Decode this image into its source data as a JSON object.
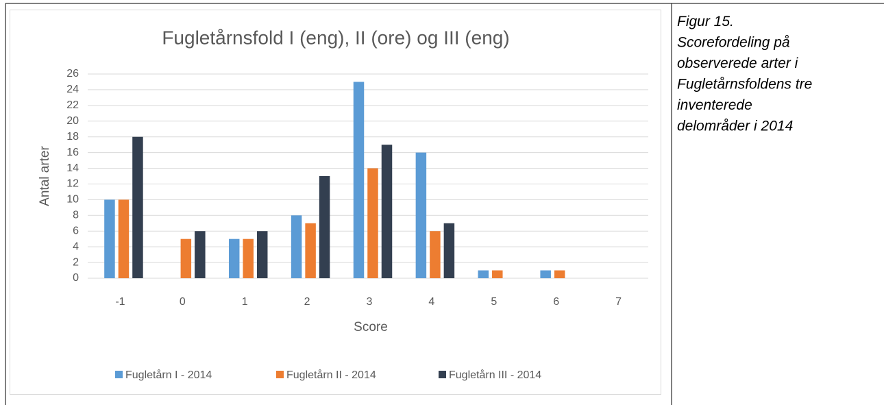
{
  "chart_data": {
    "type": "bar",
    "title": "Fugletårnsfold I (eng), II (ore) og III (eng)",
    "x_label": "Score",
    "y_label": "Antal arter",
    "categories": [
      "-1",
      "0",
      "1",
      "2",
      "3",
      "4",
      "5",
      "6",
      "7"
    ],
    "series": [
      {
        "name": "Fugletårn I - 2014",
        "color": "#5b9bd5",
        "values": [
          10,
          null,
          5,
          8,
          25,
          16,
          1,
          1,
          null
        ]
      },
      {
        "name": "Fugletårn II - 2014",
        "color": "#ed7d31",
        "values": [
          10,
          5,
          5,
          7,
          14,
          6,
          1,
          1,
          null
        ]
      },
      {
        "name": "Fugletårn III - 2014",
        "color": "#333f50",
        "values": [
          18,
          6,
          6,
          13,
          17,
          7,
          null,
          null,
          null
        ]
      }
    ],
    "ylim": [
      0,
      26
    ],
    "yticks": [
      0,
      2,
      4,
      6,
      8,
      10,
      12,
      14,
      16,
      18,
      20,
      22,
      24,
      26
    ],
    "grid": true,
    "legend": "bottom"
  },
  "caption": [
    "Figur 15.",
    "Scorefordeling på",
    "observerede arter i",
    "Fugletårnsfoldens tre",
    "inventerede",
    "delområder i 2014"
  ]
}
